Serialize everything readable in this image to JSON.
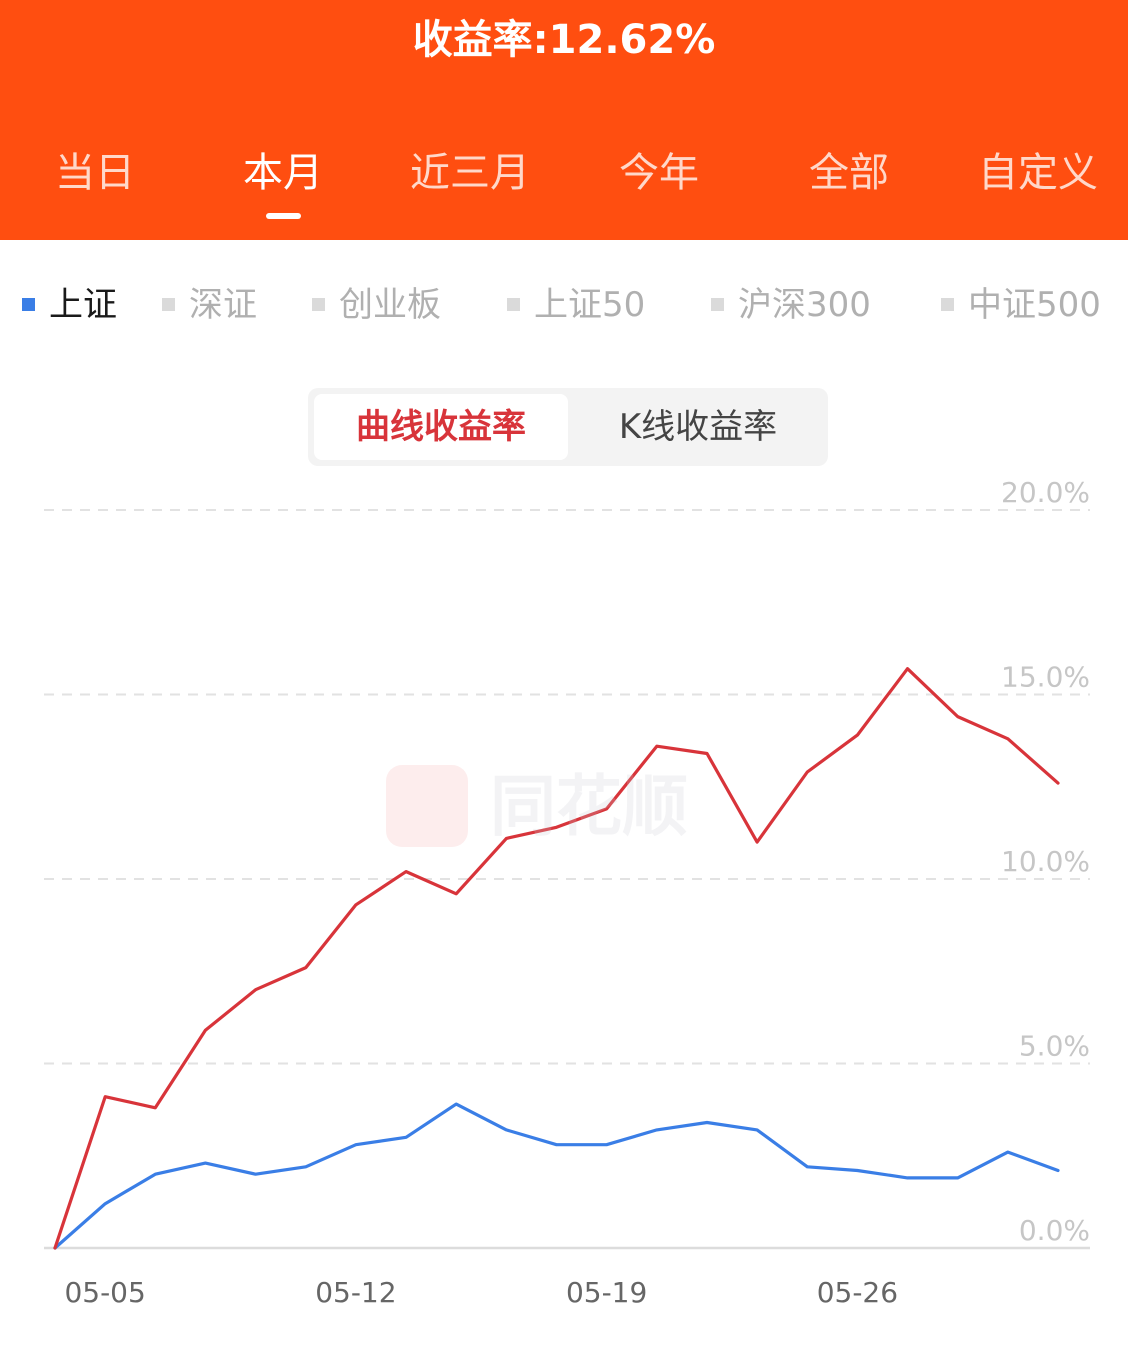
{
  "header": {
    "title": "收益率:12.62%",
    "periods": [
      "当日",
      "本月",
      "近三月",
      "今年",
      "全部",
      "自定义"
    ],
    "active_period": "本月"
  },
  "indices": {
    "items": [
      "上证",
      "深证",
      "创业板",
      "上证50",
      "沪深300",
      "中证500"
    ],
    "active": "上证"
  },
  "mode_toggle": {
    "options": [
      "曲线收益率",
      "K线收益率"
    ],
    "active": "曲线收益率"
  },
  "watermark": {
    "text": "同花顺"
  },
  "colors": {
    "header_bg": "#ff4e10",
    "portfolio_line": "#d8343a",
    "index_line": "#3a7ee6"
  },
  "chart_data": {
    "type": "line",
    "x_tick_labels": [
      "05-05",
      "05-12",
      "05-19",
      "05-26"
    ],
    "ylim": [
      0,
      20
    ],
    "y_ticks": [
      "0.0%",
      "5.0%",
      "10.0%",
      "15.0%",
      "20.0%"
    ],
    "grid": true,
    "x": [
      "05-01",
      "05-05",
      "05-06",
      "05-07",
      "05-08",
      "05-09",
      "05-12",
      "05-13",
      "05-14",
      "05-15",
      "05-16",
      "05-19",
      "05-20",
      "05-21",
      "05-22",
      "05-23",
      "05-26",
      "05-27",
      "05-28",
      "05-29",
      "05-30"
    ],
    "series": [
      {
        "values": [
          0.0,
          4.1,
          3.8,
          5.9,
          7.0,
          7.6,
          9.3,
          10.2,
          9.6,
          11.1,
          11.4,
          11.9,
          13.6,
          13.4,
          11.0,
          12.9,
          13.9,
          15.7,
          14.4,
          13.8,
          12.6
        ]
      },
      {
        "values": [
          0.0,
          1.2,
          2.0,
          2.3,
          2.0,
          2.2,
          2.8,
          3.0,
          3.9,
          3.2,
          2.8,
          2.8,
          3.2,
          3.4,
          3.2,
          2.2,
          2.1,
          1.9,
          1.9,
          2.6,
          2.1
        ]
      }
    ]
  }
}
